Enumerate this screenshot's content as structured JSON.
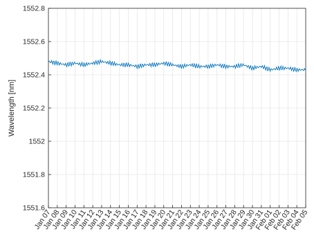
{
  "chart_data": {
    "type": "line",
    "title": "",
    "xlabel": "",
    "ylabel": "Wavelength [nm]",
    "ylim": [
      1551.6,
      1552.8
    ],
    "yticks": [
      "1551.6",
      "1551.8",
      "1552",
      "1552.2",
      "1552.4",
      "1552.6",
      "1552.8"
    ],
    "xlim": [
      "2024-01-07",
      "2024-02-05"
    ],
    "categories": [
      "Jan 07",
      "Jan 08",
      "Jan 09",
      "Jan 10",
      "Jan 11",
      "Jan 12",
      "Jan 13",
      "Jan 14",
      "Jan 15",
      "Jan 16",
      "Jan 17",
      "Jan 18",
      "Jan 19",
      "Jan 20",
      "Jan 21",
      "Jan 22",
      "Jan 23",
      "Jan 24",
      "Jan 25",
      "Jan 26",
      "Jan 27",
      "Jan 28",
      "Jan 29",
      "Jan 30",
      "Jan 31",
      "Feb 01",
      "Feb 02",
      "Feb 03",
      "Feb 04",
      "Feb 05"
    ],
    "grid": true,
    "line_color": "#0072bd",
    "series": [
      {
        "x": [
          "Jan 07",
          "Jan 08",
          "Jan 09",
          "Jan 10",
          "Jan 11",
          "Jan 12",
          "Jan 13",
          "Jan 14",
          "Jan 15",
          "Jan 16",
          "Jan 17",
          "Jan 18",
          "Jan 19",
          "Jan 20",
          "Jan 21",
          "Jan 22",
          "Jan 23",
          "Jan 24",
          "Jan 25",
          "Jan 26",
          "Jan 27",
          "Jan 28",
          "Jan 29",
          "Jan 30",
          "Jan 31",
          "Feb 01",
          "Feb 02",
          "Feb 03",
          "Feb 04",
          "Feb 05"
        ],
        "values": [
          1552.48,
          1552.47,
          1552.46,
          1552.47,
          1552.46,
          1552.47,
          1552.48,
          1552.47,
          1552.46,
          1552.46,
          1552.45,
          1552.46,
          1552.46,
          1552.47,
          1552.46,
          1552.45,
          1552.46,
          1552.45,
          1552.45,
          1552.46,
          1552.45,
          1552.45,
          1552.46,
          1552.44,
          1552.45,
          1552.43,
          1552.44,
          1552.44,
          1552.43,
          1552.43
        ]
      }
    ]
  }
}
